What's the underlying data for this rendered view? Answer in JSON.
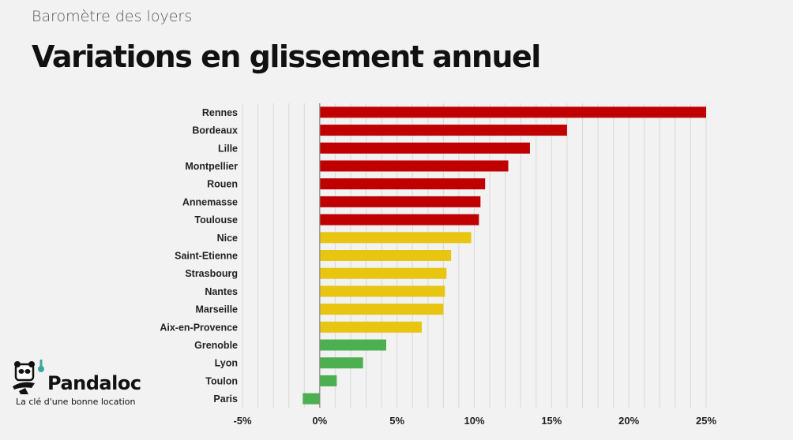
{
  "header": {
    "subtitle": "Baromètre des loyers",
    "title": "Variations en glissement annuel"
  },
  "brand": {
    "name": "Pandaloc",
    "tagline": "La clé d'une bonne location"
  },
  "colors": {
    "high": "#c00000",
    "mid": "#e8c510",
    "low": "#4caf50"
  },
  "chart_data": {
    "type": "bar",
    "orientation": "horizontal",
    "categories": [
      "Rennes",
      "Bordeaux",
      "Lille",
      "Montpellier",
      "Rouen",
      "Annemasse",
      "Toulouse",
      "Nice",
      "Saint-Etienne",
      "Strasbourg",
      "Nantes",
      "Marseille",
      "Aix-en-Provence",
      "Grenoble",
      "Lyon",
      "Toulon",
      "Paris"
    ],
    "values": [
      25.0,
      16.0,
      13.6,
      12.2,
      10.7,
      10.4,
      10.3,
      9.8,
      8.5,
      8.2,
      8.1,
      8.0,
      6.6,
      4.3,
      2.8,
      1.1,
      -1.1
    ],
    "groups": [
      "high",
      "high",
      "high",
      "high",
      "high",
      "high",
      "high",
      "mid",
      "mid",
      "mid",
      "mid",
      "mid",
      "mid",
      "low",
      "low",
      "low",
      "low"
    ],
    "xlim": [
      -5,
      25
    ],
    "ticks": [
      "-5%",
      "0%",
      "5%",
      "10%",
      "15%",
      "20%",
      "25%"
    ],
    "tick_values": [
      -5,
      0,
      5,
      10,
      15,
      20,
      25
    ],
    "grid": true
  }
}
